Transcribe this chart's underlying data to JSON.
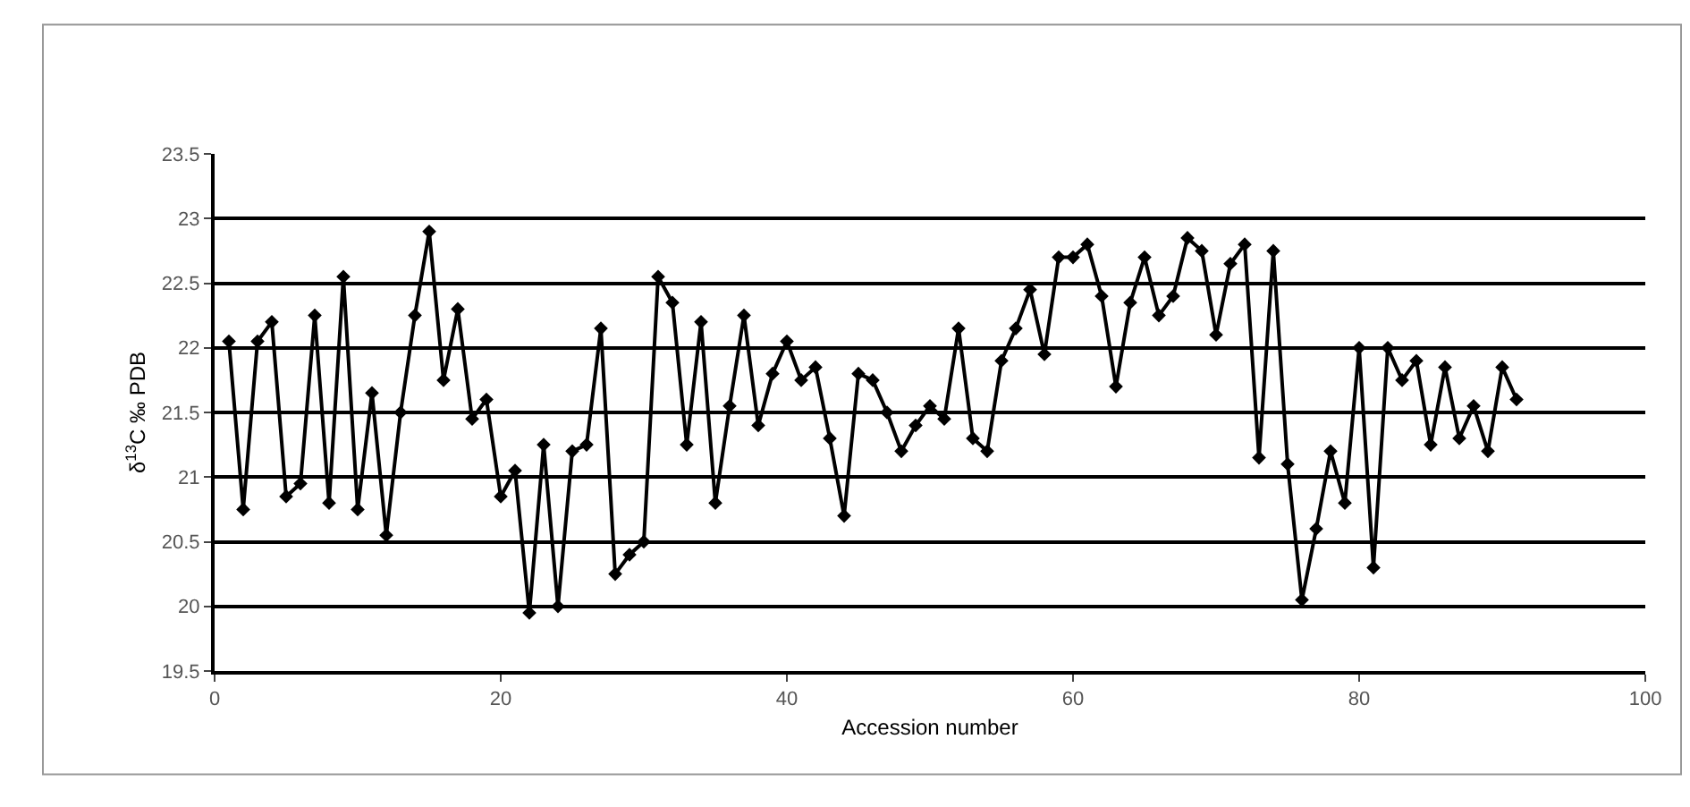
{
  "chart_data": {
    "type": "line",
    "xlabel": "Accession number",
    "ylabel": "δ$^{13}$C ‰ PDB",
    "x": [
      1,
      2,
      3,
      4,
      5,
      6,
      7,
      8,
      9,
      10,
      11,
      12,
      13,
      14,
      15,
      16,
      17,
      18,
      19,
      20,
      21,
      22,
      23,
      24,
      25,
      26,
      27,
      28,
      29,
      30,
      31,
      32,
      33,
      34,
      35,
      36,
      37,
      38,
      39,
      40,
      41,
      42,
      43,
      44,
      45,
      46,
      47,
      48,
      49,
      50,
      51,
      52,
      53,
      54,
      55,
      56,
      57,
      58,
      59,
      60,
      61,
      62,
      63,
      64,
      65,
      66,
      67,
      68,
      69,
      70,
      71,
      72,
      73,
      74,
      75,
      76,
      77,
      78,
      79,
      80,
      81,
      82,
      83,
      84,
      85,
      86,
      87,
      88,
      89,
      90,
      91
    ],
    "series": [
      {
        "color": "#000000",
        "values": [
          22.05,
          20.75,
          22.05,
          22.2,
          20.85,
          20.95,
          22.25,
          20.8,
          22.55,
          20.75,
          21.65,
          20.55,
          21.5,
          22.25,
          22.9,
          21.75,
          22.3,
          21.45,
          21.6,
          20.85,
          21.05,
          19.95,
          21.25,
          20.0,
          21.2,
          21.25,
          22.15,
          20.25,
          20.4,
          20.5,
          22.55,
          22.35,
          21.25,
          22.2,
          20.8,
          21.55,
          22.25,
          21.4,
          21.8,
          22.05,
          21.75,
          21.85,
          21.3,
          20.7,
          21.8,
          21.75,
          21.5,
          21.2,
          21.4,
          21.55,
          21.45,
          22.15,
          21.3,
          21.2,
          21.9,
          22.15,
          22.45,
          21.95,
          22.7,
          22.7,
          22.8,
          22.4,
          21.7,
          22.35,
          22.7,
          22.25,
          22.4,
          22.85,
          22.75,
          22.1,
          22.65,
          22.8,
          21.15,
          22.75,
          21.1,
          20.05,
          20.6,
          21.2,
          20.8,
          22.0,
          20.3,
          22.0,
          21.75,
          21.9,
          21.25,
          21.85,
          21.3,
          21.55,
          21.2,
          21.85,
          21.6
        ]
      }
    ],
    "xlim": [
      0,
      100
    ],
    "xticks": [
      0,
      20,
      40,
      60,
      80,
      100
    ],
    "ylim": [
      19.5,
      23.5
    ],
    "yticks": [
      19.5,
      20,
      20.5,
      21,
      21.5,
      22,
      22.5,
      23,
      23.5
    ],
    "grid": "y",
    "marker": "diamond",
    "line_style": "solid"
  }
}
